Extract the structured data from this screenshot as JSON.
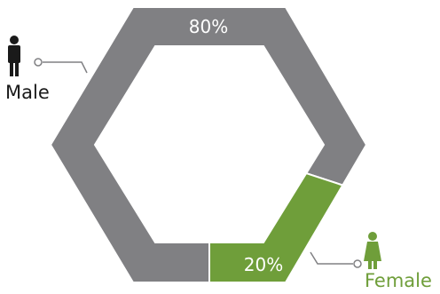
{
  "chart_data": {
    "type": "pie",
    "title": "",
    "categories": [
      "Male",
      "Female"
    ],
    "values": [
      80,
      20
    ],
    "labels": [
      "80%",
      "20%"
    ],
    "colors": [
      "#808083",
      "#6f9e3a"
    ],
    "legend_colors": [
      "#1a1a1a",
      "#6f9e3a"
    ],
    "icons": [
      "male-person-icon",
      "female-person-icon"
    ],
    "shape": "hexagon-ring"
  }
}
